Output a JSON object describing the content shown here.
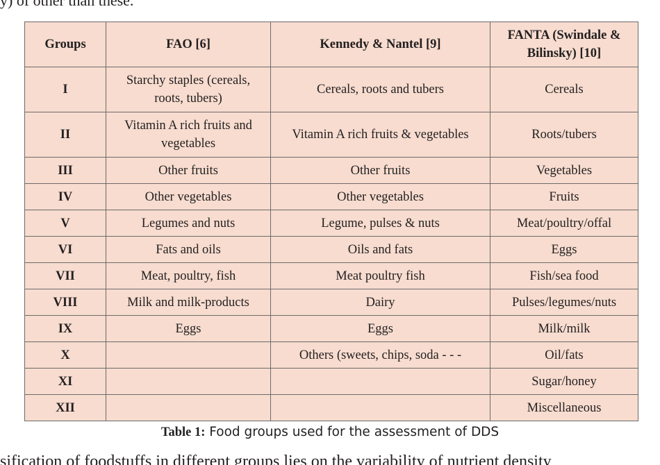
{
  "page": {
    "top_fragment": "y) of other than these.",
    "bottom_fragment": "sification of foodstuffs in different groups lies on the variability of nutrient density"
  },
  "table": {
    "headers": [
      "Groups",
      "FAO [6]",
      "Kennedy & Nantel [9]",
      "FANTA (Swindale & Bilinsky) [10]"
    ],
    "rows": [
      {
        "group": "I",
        "fao": "Starchy  staples (cereals, roots, tubers)",
        "kennedy": "Cereals, roots and tubers",
        "fanta": "Cereals"
      },
      {
        "group": "II",
        "fao": "Vitamin A rich fruits and vegetables",
        "kennedy": "Vitamin A rich fruits & vegetables",
        "fanta": "Roots/tubers"
      },
      {
        "group": "III",
        "fao": "Other fruits",
        "kennedy": "Other fruits",
        "fanta": "Vegetables"
      },
      {
        "group": "IV",
        "fao": "Other vegetables",
        "kennedy": "Other vegetables",
        "fanta": "Fruits"
      },
      {
        "group": "V",
        "fao": "Legumes and nuts",
        "kennedy": "Legume, pulses & nuts",
        "fanta": "Meat/poultry/offal"
      },
      {
        "group": "VI",
        "fao": "Fats and oils",
        "kennedy": "Oils and fats",
        "fanta": "Eggs"
      },
      {
        "group": "VII",
        "fao": "Meat, poultry, fish",
        "kennedy": "Meat poultry fish",
        "fanta": "Fish/sea food"
      },
      {
        "group": "VIII",
        "fao": "Milk and milk-products",
        "kennedy": "Dairy",
        "fanta": "Pulses/legumes/nuts"
      },
      {
        "group": "IX",
        "fao": "Eggs",
        "kennedy": "Eggs",
        "fanta": "Milk/milk"
      },
      {
        "group": "X",
        "fao": "",
        "kennedy": "Others (sweets, chips, soda - - -",
        "fanta": "Oil/fats"
      },
      {
        "group": "XI",
        "fao": "",
        "kennedy": "",
        "fanta": "Sugar/honey"
      },
      {
        "group": "XII",
        "fao": "",
        "kennedy": "",
        "fanta": "Miscellaneous"
      }
    ]
  },
  "caption": {
    "label": "Table 1:",
    "text": " Food groups used for the assessment of DDS"
  },
  "colors": {
    "cell_background": "#f7dccf",
    "border": "#6d6a69",
    "text": "#231f20"
  }
}
